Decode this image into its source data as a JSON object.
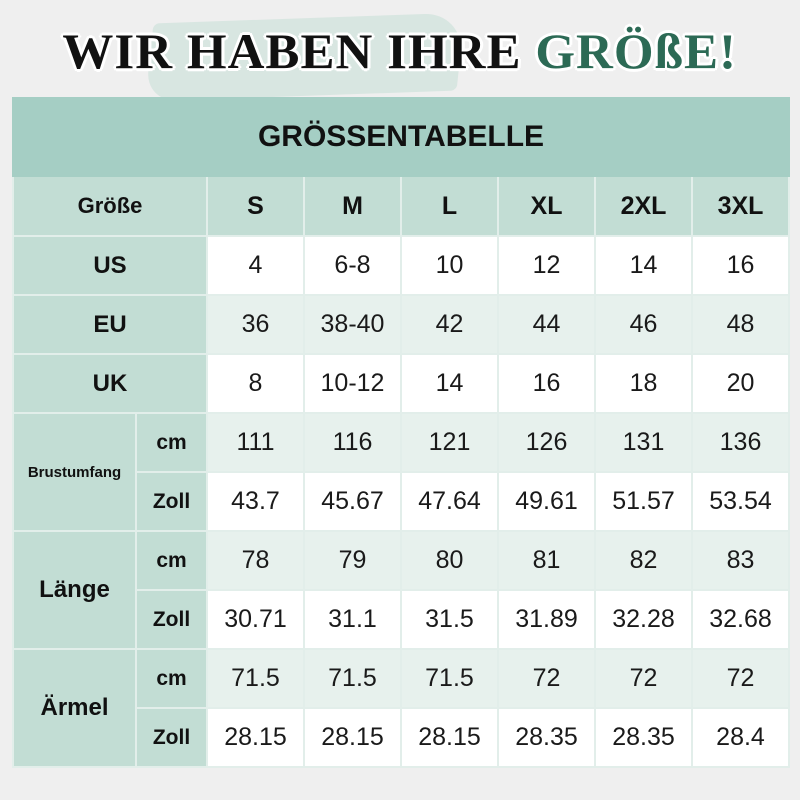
{
  "headline": {
    "dark": "WIR HABEN IHRE",
    "green": "GRÖßE!"
  },
  "colors": {
    "title_bg": "#a5cec4",
    "label_bg": "#c2ddd4",
    "row_tint": "#e7f1ed",
    "accent_green": "#2c6a55"
  },
  "table": {
    "title": "GRÖSSENTABELLE",
    "header_label": "Größe",
    "sizes": [
      "S",
      "M",
      "L",
      "XL",
      "2XL",
      "3XL"
    ],
    "simple_rows": [
      {
        "label": "US",
        "values": [
          "4",
          "6-8",
          "10",
          "12",
          "14",
          "16"
        ]
      },
      {
        "label": "EU",
        "values": [
          "36",
          "38-40",
          "42",
          "44",
          "46",
          "48"
        ]
      },
      {
        "label": "UK",
        "values": [
          "8",
          "10-12",
          "14",
          "16",
          "18",
          "20"
        ]
      }
    ],
    "groups": [
      {
        "label": "Brustumfang",
        "rows": [
          {
            "unit": "cm",
            "values": [
              "111",
              "116",
              "121",
              "126",
              "131",
              "136"
            ]
          },
          {
            "unit": "Zoll",
            "values": [
              "43.7",
              "45.67",
              "47.64",
              "49.61",
              "51.57",
              "53.54"
            ]
          }
        ]
      },
      {
        "label": "Länge",
        "rows": [
          {
            "unit": "cm",
            "values": [
              "78",
              "79",
              "80",
              "81",
              "82",
              "83"
            ]
          },
          {
            "unit": "Zoll",
            "values": [
              "30.71",
              "31.1",
              "31.5",
              "31.89",
              "32.28",
              "32.68"
            ]
          }
        ]
      },
      {
        "label": "Ärmel",
        "rows": [
          {
            "unit": "cm",
            "values": [
              "71.5",
              "71.5",
              "71.5",
              "72",
              "72",
              "72"
            ]
          },
          {
            "unit": "Zoll",
            "values": [
              "28.15",
              "28.15",
              "28.15",
              "28.35",
              "28.35",
              "28.4"
            ]
          }
        ]
      }
    ]
  }
}
